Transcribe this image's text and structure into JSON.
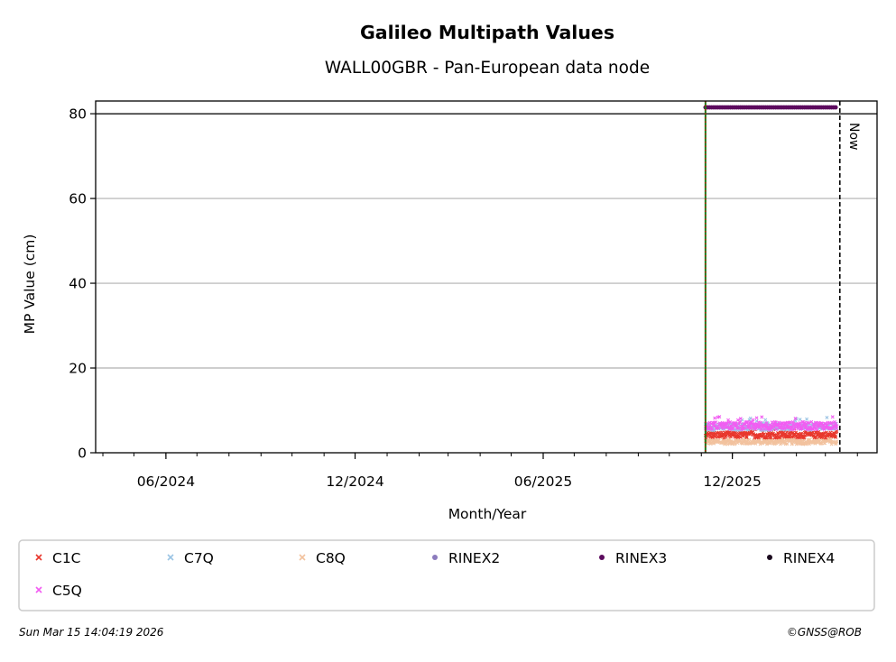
{
  "chart_data": {
    "type": "scatter",
    "title": "Galileo Multipath Values",
    "subtitle": "WALL00GBR - Pan-European data node",
    "xlabel": "Month/Year",
    "ylabel": "MP Value (cm)",
    "xlim": [
      "2024-03-25",
      "2026-04-20"
    ],
    "ylim": [
      0,
      83
    ],
    "x_ticks": [
      "06/2024",
      "12/2024",
      "06/2025",
      "12/2025"
    ],
    "y_ticks": [
      0,
      20,
      40,
      60,
      80
    ],
    "grid": "y",
    "limit_line": 80,
    "now_label": "Now",
    "now_date": "2026-03-15",
    "event_date": "2025-11-05",
    "data_start": "2025-11-05",
    "data_end": "2026-03-12",
    "series": [
      {
        "name": "C1C",
        "color": "#e8372c",
        "marker": "x",
        "mean": 4.2,
        "spread": 0.7
      },
      {
        "name": "C7Q",
        "color": "#9bc4e4",
        "marker": "x",
        "mean": 6.1,
        "spread": 0.8
      },
      {
        "name": "C8Q",
        "color": "#f2c29e",
        "marker": "x",
        "mean": 2.6,
        "spread": 0.6
      },
      {
        "name": "RINEX2",
        "color": "#8c7bbd",
        "marker": "dot"
      },
      {
        "name": "RINEX3",
        "color": "#5c0b5e",
        "marker": "dot",
        "constant": 81.5
      },
      {
        "name": "RINEX4",
        "color": "#1a0a1e",
        "marker": "dot"
      },
      {
        "name": "C5Q",
        "color": "#f25cf2",
        "marker": "x",
        "mean": 6.4,
        "spread": 0.9
      }
    ],
    "legend_position": "below"
  },
  "footer": {
    "timestamp": "Sun Mar 15 14:04:19 2026",
    "credit": "©GNSS@ROB"
  }
}
